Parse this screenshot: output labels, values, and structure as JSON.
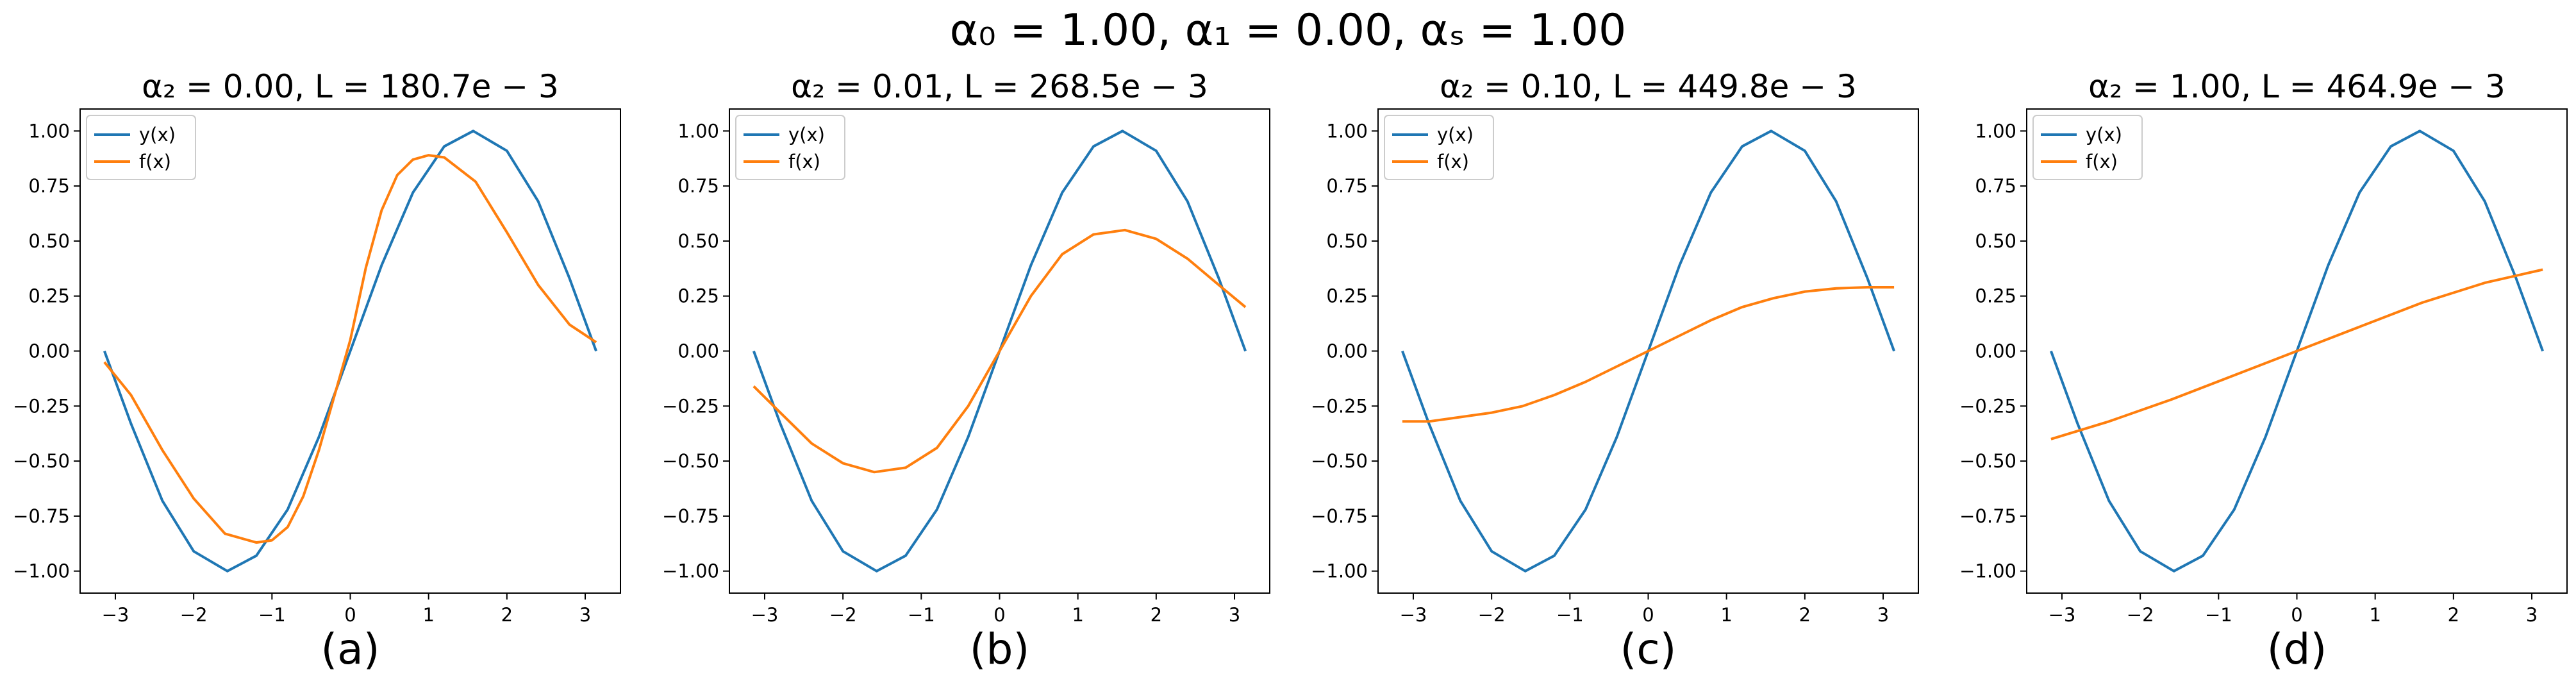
{
  "figure": {
    "suptitle": "α₀ = 1.00, α₁ = 0.00, αₛ = 1.00"
  },
  "colors": {
    "y_series": "#1f77b4",
    "f_series": "#ff7f0e",
    "axes": "#000000",
    "legend_border": "#cccccc"
  },
  "chart_data": [
    {
      "type": "line",
      "title": "α₂ = 0.00, L = 180.7e − 3",
      "panel_label": "(a)",
      "xlim": [
        -3.45,
        3.45
      ],
      "ylim": [
        -1.1,
        1.1
      ],
      "x_ticks": [
        -3,
        -2,
        -1,
        0,
        1,
        2,
        3
      ],
      "x_tick_labels": [
        "−3",
        "−2",
        "−1",
        "0",
        "1",
        "2",
        "3"
      ],
      "y_ticks": [
        -1.0,
        -0.75,
        -0.5,
        -0.25,
        0.0,
        0.25,
        0.5,
        0.75,
        1.0
      ],
      "y_tick_labels": [
        "−1.00",
        "−0.75",
        "−0.50",
        "−0.25",
        "0.00",
        "0.25",
        "0.50",
        "0.75",
        "1.00"
      ],
      "grid": false,
      "legend": "upper-left",
      "series": [
        {
          "name": "y(x)",
          "color": "#1f77b4",
          "x": [
            -3.14,
            -2.8,
            -2.4,
            -2.0,
            -1.57,
            -1.2,
            -0.8,
            -0.4,
            0.0,
            0.4,
            0.8,
            1.2,
            1.57,
            2.0,
            2.4,
            2.8,
            3.14
          ],
          "y": [
            0.0,
            -0.33,
            -0.68,
            -0.91,
            -1.0,
            -0.93,
            -0.72,
            -0.39,
            0.0,
            0.39,
            0.72,
            0.93,
            1.0,
            0.91,
            0.68,
            0.33,
            0.0
          ]
        },
        {
          "name": "f(x)",
          "color": "#ff7f0e",
          "x": [
            -3.14,
            -2.8,
            -2.4,
            -2.0,
            -1.6,
            -1.2,
            -1.0,
            -0.8,
            -0.6,
            -0.4,
            -0.2,
            0.0,
            0.2,
            0.4,
            0.6,
            0.8,
            1.0,
            1.2,
            1.6,
            2.0,
            2.4,
            2.8,
            3.14
          ],
          "y": [
            -0.05,
            -0.2,
            -0.45,
            -0.67,
            -0.83,
            -0.87,
            -0.86,
            -0.8,
            -0.66,
            -0.45,
            -0.2,
            0.05,
            0.38,
            0.64,
            0.8,
            0.87,
            0.89,
            0.88,
            0.77,
            0.54,
            0.3,
            0.12,
            0.04
          ]
        }
      ]
    },
    {
      "type": "line",
      "title": "α₂ = 0.01, L = 268.5e − 3",
      "panel_label": "(b)",
      "xlim": [
        -3.45,
        3.45
      ],
      "ylim": [
        -1.1,
        1.1
      ],
      "x_ticks": [
        -3,
        -2,
        -1,
        0,
        1,
        2,
        3
      ],
      "x_tick_labels": [
        "−3",
        "−2",
        "−1",
        "0",
        "1",
        "2",
        "3"
      ],
      "y_ticks": [
        -1.0,
        -0.75,
        -0.5,
        -0.25,
        0.0,
        0.25,
        0.5,
        0.75,
        1.0
      ],
      "y_tick_labels": [
        "−1.00",
        "−0.75",
        "−0.50",
        "−0.25",
        "0.00",
        "0.25",
        "0.50",
        "0.75",
        "1.00"
      ],
      "grid": false,
      "legend": "upper-left",
      "series": [
        {
          "name": "y(x)",
          "color": "#1f77b4",
          "x": [
            -3.14,
            -2.8,
            -2.4,
            -2.0,
            -1.57,
            -1.2,
            -0.8,
            -0.4,
            0.0,
            0.4,
            0.8,
            1.2,
            1.57,
            2.0,
            2.4,
            2.8,
            3.14
          ],
          "y": [
            0.0,
            -0.33,
            -0.68,
            -0.91,
            -1.0,
            -0.93,
            -0.72,
            -0.39,
            0.0,
            0.39,
            0.72,
            0.93,
            1.0,
            0.91,
            0.68,
            0.33,
            0.0
          ]
        },
        {
          "name": "f(x)",
          "color": "#ff7f0e",
          "x": [
            -3.14,
            -2.8,
            -2.4,
            -2.0,
            -1.6,
            -1.2,
            -0.8,
            -0.4,
            0.0,
            0.4,
            0.8,
            1.2,
            1.6,
            2.0,
            2.4,
            2.8,
            3.14
          ],
          "y": [
            -0.16,
            -0.28,
            -0.42,
            -0.51,
            -0.55,
            -0.53,
            -0.44,
            -0.25,
            0.0,
            0.25,
            0.44,
            0.53,
            0.55,
            0.51,
            0.42,
            0.3,
            0.2
          ]
        }
      ]
    },
    {
      "type": "line",
      "title": "α₂ = 0.10, L = 449.8e − 3",
      "panel_label": "(c)",
      "xlim": [
        -3.45,
        3.45
      ],
      "ylim": [
        -1.1,
        1.1
      ],
      "x_ticks": [
        -3,
        -2,
        -1,
        0,
        1,
        2,
        3
      ],
      "x_tick_labels": [
        "−3",
        "−2",
        "−1",
        "0",
        "1",
        "2",
        "3"
      ],
      "y_ticks": [
        -1.0,
        -0.75,
        -0.5,
        -0.25,
        0.0,
        0.25,
        0.5,
        0.75,
        1.0
      ],
      "y_tick_labels": [
        "−1.00",
        "−0.75",
        "−0.50",
        "−0.25",
        "0.00",
        "0.25",
        "0.50",
        "0.75",
        "1.00"
      ],
      "grid": false,
      "legend": "upper-left",
      "series": [
        {
          "name": "y(x)",
          "color": "#1f77b4",
          "x": [
            -3.14,
            -2.8,
            -2.4,
            -2.0,
            -1.57,
            -1.2,
            -0.8,
            -0.4,
            0.0,
            0.4,
            0.8,
            1.2,
            1.57,
            2.0,
            2.4,
            2.8,
            3.14
          ],
          "y": [
            0.0,
            -0.33,
            -0.68,
            -0.91,
            -1.0,
            -0.93,
            -0.72,
            -0.39,
            0.0,
            0.39,
            0.72,
            0.93,
            1.0,
            0.91,
            0.68,
            0.33,
            0.0
          ]
        },
        {
          "name": "f(x)",
          "color": "#ff7f0e",
          "x": [
            -3.14,
            -2.8,
            -2.4,
            -2.0,
            -1.6,
            -1.2,
            -0.8,
            -0.4,
            0.0,
            0.4,
            0.8,
            1.2,
            1.6,
            2.0,
            2.4,
            2.8,
            3.14
          ],
          "y": [
            -0.32,
            -0.32,
            -0.3,
            -0.28,
            -0.25,
            -0.2,
            -0.14,
            -0.07,
            0.0,
            0.07,
            0.14,
            0.2,
            0.24,
            0.27,
            0.285,
            0.29,
            0.29
          ]
        }
      ]
    },
    {
      "type": "line",
      "title": "α₂ = 1.00, L = 464.9e − 3",
      "panel_label": "(d)",
      "xlim": [
        -3.45,
        3.45
      ],
      "ylim": [
        -1.1,
        1.1
      ],
      "x_ticks": [
        -3,
        -2,
        -1,
        0,
        1,
        2,
        3
      ],
      "x_tick_labels": [
        "−3",
        "−2",
        "−1",
        "0",
        "1",
        "2",
        "3"
      ],
      "y_ticks": [
        -1.0,
        -0.75,
        -0.5,
        -0.25,
        0.0,
        0.25,
        0.5,
        0.75,
        1.0
      ],
      "y_tick_labels": [
        "−1.00",
        "−0.75",
        "−0.50",
        "−0.25",
        "0.00",
        "0.25",
        "0.50",
        "0.75",
        "1.00"
      ],
      "grid": false,
      "legend": "upper-left",
      "series": [
        {
          "name": "y(x)",
          "color": "#1f77b4",
          "x": [
            -3.14,
            -2.8,
            -2.4,
            -2.0,
            -1.57,
            -1.2,
            -0.8,
            -0.4,
            0.0,
            0.4,
            0.8,
            1.2,
            1.57,
            2.0,
            2.4,
            2.8,
            3.14
          ],
          "y": [
            0.0,
            -0.33,
            -0.68,
            -0.91,
            -1.0,
            -0.93,
            -0.72,
            -0.39,
            0.0,
            0.39,
            0.72,
            0.93,
            1.0,
            0.91,
            0.68,
            0.33,
            0.0
          ]
        },
        {
          "name": "f(x)",
          "color": "#ff7f0e",
          "x": [
            -3.14,
            -2.4,
            -1.6,
            -0.8,
            0.0,
            0.8,
            1.6,
            2.4,
            3.14
          ],
          "y": [
            -0.4,
            -0.32,
            -0.22,
            -0.11,
            0.0,
            0.11,
            0.22,
            0.31,
            0.37
          ]
        }
      ]
    }
  ]
}
